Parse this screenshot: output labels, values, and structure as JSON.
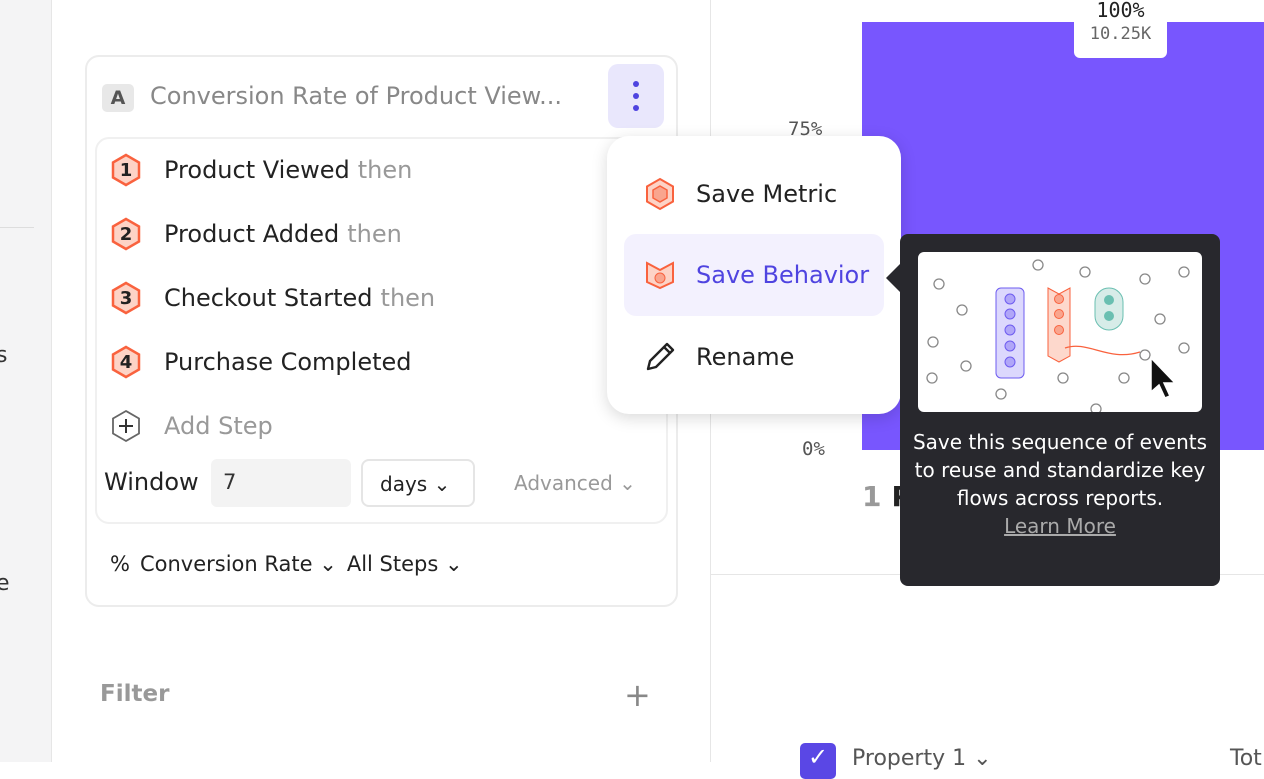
{
  "left_nav": {
    "fragments": [
      "s",
      "e"
    ]
  },
  "metric_card": {
    "letter": "A",
    "title": "Conversion Rate of Product View...",
    "steps": [
      {
        "number": "1",
        "event": "Product Viewed",
        "suffix": "then"
      },
      {
        "number": "2",
        "event": "Product Added",
        "suffix": "then"
      },
      {
        "number": "3",
        "event": "Checkout Started",
        "suffix": "then"
      },
      {
        "number": "4",
        "event": "Purchase Completed",
        "suffix": ""
      }
    ],
    "add_step": "Add Step",
    "window_label": "Window",
    "window_value": "7",
    "window_unit": "days",
    "advanced": "Advanced",
    "measure_symbol": "%",
    "measure": "Conversion Rate",
    "steps_scope": "All Steps"
  },
  "filter": {
    "label": "Filter"
  },
  "menu": {
    "items": [
      {
        "label": "Save Metric",
        "icon": "hexagon-metric-icon"
      },
      {
        "label": "Save Behavior",
        "icon": "behavior-icon",
        "active": true
      },
      {
        "label": "Rename",
        "icon": "pencil-icon"
      }
    ]
  },
  "tooltip": {
    "text": "Save this sequence of events to reuse and standardize key flows across reports.",
    "link": "Learn More"
  },
  "chart_data": {
    "type": "bar",
    "categories": [
      "1 P"
    ],
    "values": [
      100
    ],
    "data_labels": [
      {
        "percent": "100%",
        "count": "10.25K"
      }
    ],
    "y_ticks": [
      "75%",
      "0%"
    ],
    "ylim": [
      0,
      100
    ],
    "bar_color": "#7856fe",
    "category_number": "1",
    "category_label": "P"
  },
  "legend_table": {
    "property": "Property 1",
    "total": "Tot"
  },
  "colors": {
    "accent": "#4f44e0",
    "step_badge": "#f9623e",
    "bar": "#7856fe"
  }
}
